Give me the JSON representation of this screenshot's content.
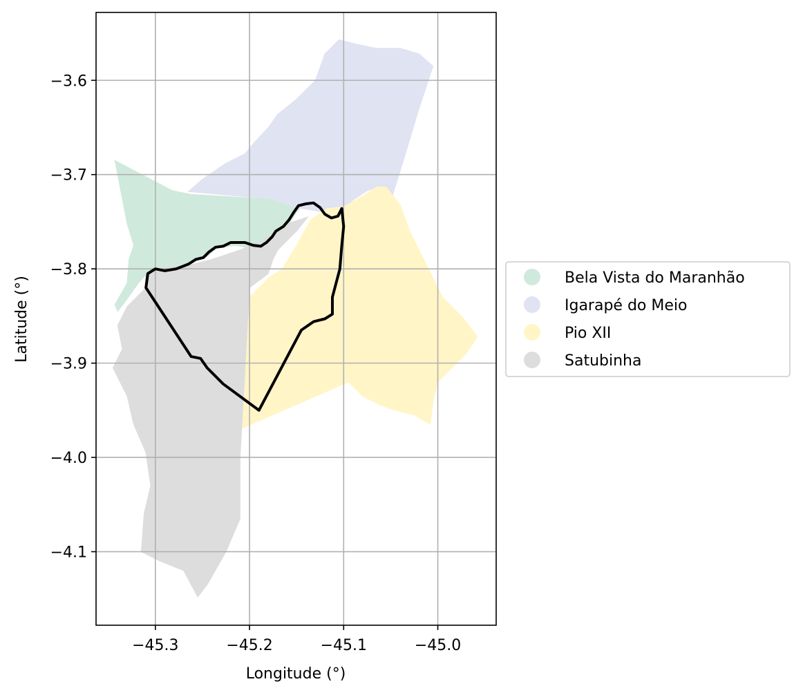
{
  "chart_data": {
    "type": "map",
    "title": "",
    "xlabel": "Longitude (°)",
    "ylabel": "Latitude (°)",
    "xlim": [
      -45.363,
      -44.938
    ],
    "ylim": [
      -4.178,
      -3.528
    ],
    "grid": true,
    "legend_placement": "center-right outside",
    "x_ticks": [
      {
        "value": -45.3,
        "label": "−45.3"
      },
      {
        "value": -45.2,
        "label": "−45.2"
      },
      {
        "value": -45.1,
        "label": "−45.1"
      },
      {
        "value": -45.0,
        "label": "−45.0"
      }
    ],
    "y_ticks": [
      {
        "value": -3.6,
        "label": "−3.6"
      },
      {
        "value": -3.7,
        "label": "−3.7"
      },
      {
        "value": -3.8,
        "label": "−3.8"
      },
      {
        "value": -3.9,
        "label": "−3.9"
      },
      {
        "value": -4.0,
        "label": "−4.0"
      },
      {
        "value": -4.1,
        "label": "−4.1"
      }
    ],
    "regions": [
      {
        "name": "Bela Vista do Maranhão",
        "color": "#cfeadc",
        "polygon": [
          [
            -45.343,
            -3.685
          ],
          [
            -45.282,
            -3.717
          ],
          [
            -45.262,
            -3.721
          ],
          [
            -45.16,
            -3.727
          ],
          [
            -45.14,
            -3.728
          ],
          [
            -45.15,
            -3.74
          ],
          [
            -45.16,
            -3.755
          ],
          [
            -45.168,
            -3.765
          ],
          [
            -45.185,
            -3.775
          ],
          [
            -45.2,
            -3.778
          ],
          [
            -45.215,
            -3.775
          ],
          [
            -45.235,
            -3.778
          ],
          [
            -45.245,
            -3.787
          ],
          [
            -45.27,
            -3.795
          ],
          [
            -45.295,
            -3.8
          ],
          [
            -45.307,
            -3.803
          ],
          [
            -45.318,
            -3.815
          ],
          [
            -45.33,
            -3.832
          ],
          [
            -45.34,
            -3.845
          ],
          [
            -45.343,
            -3.838
          ],
          [
            -45.33,
            -3.815
          ],
          [
            -45.328,
            -3.79
          ],
          [
            -45.323,
            -3.775
          ],
          [
            -45.33,
            -3.752
          ]
        ]
      },
      {
        "name": "Igarapé do Meio",
        "color": "#dfe3f2",
        "polygon": [
          [
            -45.265,
            -3.718
          ],
          [
            -45.25,
            -3.705
          ],
          [
            -45.225,
            -3.688
          ],
          [
            -45.205,
            -3.678
          ],
          [
            -45.195,
            -3.666
          ],
          [
            -45.18,
            -3.65
          ],
          [
            -45.17,
            -3.636
          ],
          [
            -45.15,
            -3.62
          ],
          [
            -45.13,
            -3.6
          ],
          [
            -45.12,
            -3.572
          ],
          [
            -45.105,
            -3.557
          ],
          [
            -45.085,
            -3.562
          ],
          [
            -45.065,
            -3.566
          ],
          [
            -45.04,
            -3.566
          ],
          [
            -45.02,
            -3.572
          ],
          [
            -45.005,
            -3.585
          ],
          [
            -45.02,
            -3.63
          ],
          [
            -45.035,
            -3.68
          ],
          [
            -45.048,
            -3.722
          ],
          [
            -45.06,
            -3.712
          ],
          [
            -45.075,
            -3.717
          ],
          [
            -45.09,
            -3.727
          ],
          [
            -45.102,
            -3.738
          ],
          [
            -45.12,
            -3.74
          ],
          [
            -45.15,
            -3.735
          ],
          [
            -45.175,
            -3.726
          ],
          [
            -45.22,
            -3.722
          ]
        ]
      },
      {
        "name": "Pio XII",
        "color": "#fff5c7",
        "polygon": [
          [
            -45.135,
            -3.748
          ],
          [
            -45.118,
            -3.736
          ],
          [
            -45.1,
            -3.734
          ],
          [
            -45.08,
            -3.723
          ],
          [
            -45.065,
            -3.713
          ],
          [
            -45.055,
            -3.713
          ],
          [
            -45.048,
            -3.722
          ],
          [
            -45.04,
            -3.732
          ],
          [
            -45.03,
            -3.76
          ],
          [
            -45.015,
            -3.79
          ],
          [
            -44.995,
            -3.83
          ],
          [
            -44.975,
            -3.85
          ],
          [
            -44.958,
            -3.872
          ],
          [
            -44.97,
            -3.89
          ],
          [
            -44.985,
            -3.905
          ],
          [
            -45.0,
            -3.92
          ],
          [
            -45.005,
            -3.94
          ],
          [
            -45.008,
            -3.965
          ],
          [
            -45.025,
            -3.955
          ],
          [
            -45.045,
            -3.95
          ],
          [
            -45.06,
            -3.945
          ],
          [
            -45.08,
            -3.935
          ],
          [
            -45.095,
            -3.92
          ],
          [
            -45.21,
            -3.97
          ],
          [
            -45.218,
            -4.035
          ],
          [
            -45.232,
            -4.032
          ],
          [
            -45.218,
            -3.95
          ],
          [
            -45.2,
            -3.83
          ],
          [
            -45.18,
            -3.81
          ],
          [
            -45.165,
            -3.8
          ],
          [
            -45.15,
            -3.775
          ]
        ]
      },
      {
        "name": "Satubinha",
        "color": "#dddddd",
        "polygon": [
          [
            -45.31,
            -3.82
          ],
          [
            -45.33,
            -3.84
          ],
          [
            -45.34,
            -3.86
          ],
          [
            -45.335,
            -3.885
          ],
          [
            -45.345,
            -3.905
          ],
          [
            -45.33,
            -3.935
          ],
          [
            -45.323,
            -3.965
          ],
          [
            -45.31,
            -3.995
          ],
          [
            -45.305,
            -4.03
          ],
          [
            -45.312,
            -4.06
          ],
          [
            -45.315,
            -4.1
          ],
          [
            -45.295,
            -4.11
          ],
          [
            -45.27,
            -4.12
          ],
          [
            -45.255,
            -4.148
          ],
          [
            -45.245,
            -4.135
          ],
          [
            -45.225,
            -4.1
          ],
          [
            -45.21,
            -4.065
          ],
          [
            -45.21,
            -4.0
          ],
          [
            -45.2,
            -3.82
          ],
          [
            -45.18,
            -3.805
          ],
          [
            -45.175,
            -3.79
          ],
          [
            -45.17,
            -3.78
          ],
          [
            -45.15,
            -3.76
          ],
          [
            -45.138,
            -3.745
          ],
          [
            -45.16,
            -3.752
          ],
          [
            -45.175,
            -3.762
          ],
          [
            -45.19,
            -3.772
          ],
          [
            -45.21,
            -3.78
          ],
          [
            -45.24,
            -3.79
          ],
          [
            -45.26,
            -3.795
          ],
          [
            -45.3,
            -3.8
          ],
          [
            -45.31,
            -3.805
          ]
        ]
      }
    ],
    "outline": {
      "color": "#000000",
      "polygon": [
        [
          -45.31,
          -3.82
        ],
        [
          -45.308,
          -3.805
        ],
        [
          -45.3,
          -3.8
        ],
        [
          -45.29,
          -3.802
        ],
        [
          -45.278,
          -3.8
        ],
        [
          -45.265,
          -3.795
        ],
        [
          -45.257,
          -3.79
        ],
        [
          -45.249,
          -3.788
        ],
        [
          -45.243,
          -3.782
        ],
        [
          -45.236,
          -3.777
        ],
        [
          -45.228,
          -3.776
        ],
        [
          -45.22,
          -3.772
        ],
        [
          -45.213,
          -3.772
        ],
        [
          -45.205,
          -3.772
        ],
        [
          -45.196,
          -3.775
        ],
        [
          -45.188,
          -3.776
        ],
        [
          -45.182,
          -3.772
        ],
        [
          -45.176,
          -3.766
        ],
        [
          -45.172,
          -3.76
        ],
        [
          -45.164,
          -3.755
        ],
        [
          -45.158,
          -3.748
        ],
        [
          -45.153,
          -3.74
        ],
        [
          -45.148,
          -3.733
        ],
        [
          -45.14,
          -3.731
        ],
        [
          -45.132,
          -3.73
        ],
        [
          -45.125,
          -3.735
        ],
        [
          -45.12,
          -3.742
        ],
        [
          -45.113,
          -3.746
        ],
        [
          -45.106,
          -3.744
        ],
        [
          -45.102,
          -3.736
        ],
        [
          -45.1,
          -3.755
        ],
        [
          -45.102,
          -3.775
        ],
        [
          -45.104,
          -3.8
        ],
        [
          -45.108,
          -3.815
        ],
        [
          -45.112,
          -3.83
        ],
        [
          -45.112,
          -3.848
        ],
        [
          -45.12,
          -3.853
        ],
        [
          -45.132,
          -3.856
        ],
        [
          -45.145,
          -3.865
        ],
        [
          -45.19,
          -3.95
        ],
        [
          -45.228,
          -3.922
        ],
        [
          -45.245,
          -3.905
        ],
        [
          -45.252,
          -3.895
        ],
        [
          -45.262,
          -3.893
        ]
      ]
    }
  },
  "legend": {
    "items": [
      {
        "label": "Bela Vista do Maranhão",
        "color": "#cfeadc"
      },
      {
        "label": "Igarapé do Meio",
        "color": "#dfe3f2"
      },
      {
        "label": "Pio XII",
        "color": "#fff5c7"
      },
      {
        "label": "Satubinha",
        "color": "#dddddd"
      }
    ]
  }
}
